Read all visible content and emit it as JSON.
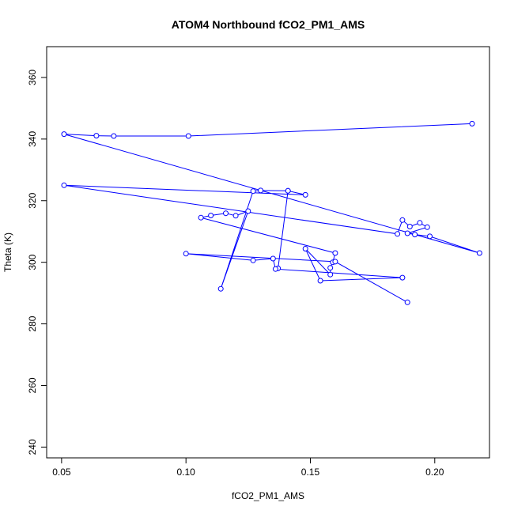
{
  "chart_data": {
    "type": "scatter",
    "title": "ATOM4 Northbound fCO2_PM1_AMS",
    "xlabel": "fCO2_PM1_AMS",
    "ylabel": "Theta (K)",
    "xlim": [
      0.044,
      0.222
    ],
    "ylim": [
      236.5,
      370
    ],
    "x_ticks": [
      0.05,
      0.1,
      0.15,
      0.2
    ],
    "x_tick_labels": [
      "0.05",
      "0.10",
      "0.15",
      "0.20"
    ],
    "y_ticks": [
      240,
      260,
      280,
      300,
      320,
      340,
      360
    ],
    "y_tick_labels": [
      "240",
      "260",
      "280",
      "300",
      "320",
      "340",
      "360"
    ],
    "grid": false,
    "legend": "none",
    "series": [
      {
        "color": "#0000ff",
        "marker": "open-circle",
        "connected": true,
        "x": [
          0.215,
          0.101,
          0.071,
          0.064,
          0.051,
          0.218,
          0.198,
          0.192,
          0.189,
          0.197,
          0.194,
          0.19,
          0.187,
          0.185,
          0.051,
          0.148,
          0.141,
          0.137,
          0.141,
          0.13,
          0.127,
          0.114,
          0.125,
          0.12,
          0.116,
          0.11,
          0.106,
          0.16,
          0.159,
          0.158,
          0.158,
          0.148,
          0.154,
          0.187,
          0.136,
          0.135,
          0.127,
          0.1,
          0.16,
          0.189
        ],
        "y": [
          345.0,
          341.0,
          341.0,
          341.1,
          341.6,
          303.0,
          308.4,
          309.0,
          309.4,
          311.4,
          312.8,
          311.6,
          313.7,
          309.2,
          325.0,
          321.9,
          323.2,
          298.0,
          323.2,
          323.3,
          323.1,
          291.4,
          316.6,
          315.1,
          315.9,
          315.2,
          314.5,
          303.0,
          300.0,
          298.2,
          296.0,
          304.4,
          294.0,
          295.0,
          297.8,
          301.2,
          300.6,
          302.8,
          300.2,
          287.0
        ]
      }
    ]
  }
}
